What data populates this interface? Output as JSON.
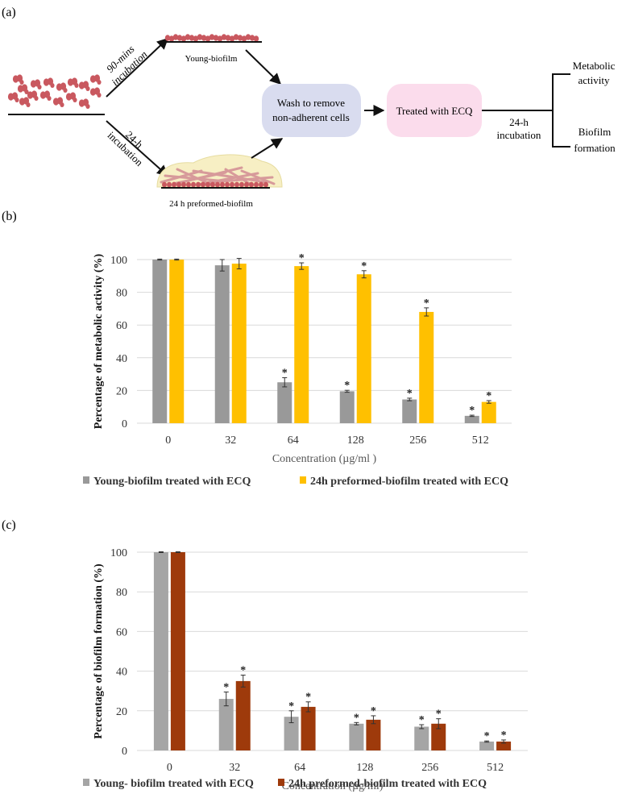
{
  "panel_a": {
    "label": "(a)",
    "arrow_top_label_1": "90-mins",
    "arrow_top_label_2": "incubation",
    "arrow_bottom_label_1": "24-h",
    "arrow_bottom_label_2": "incubation",
    "young_caption": "Young-biofilm",
    "preformed_caption": "24 h preformed-biofilm",
    "wash_box_1": "Wash to remove",
    "wash_box_2": "non-adherent cells",
    "treated_box": "Treated with ECQ",
    "incubation_1": "24-h",
    "incubation_2": "incubation",
    "outcome_1a": "Metabolic",
    "outcome_1b": "activity",
    "outcome_2a": "Biofilm",
    "outcome_2b": "formation",
    "colors": {
      "wash_box": "#d9dcef",
      "treated_box": "#fbdcec",
      "cells": "#c9585f",
      "matrix": "#f7efc4"
    }
  },
  "chart_data": [
    {
      "panel_label": "(b)",
      "type": "bar",
      "title": "",
      "xlabel": "Concentration (µg/ml )",
      "ylabel": "Percentage of metabolic activity (%)",
      "ylim": [
        0,
        100
      ],
      "yticks": [
        0,
        20,
        40,
        60,
        80,
        100
      ],
      "grid": true,
      "legend_position": "bottom",
      "categories": [
        "0",
        "32",
        "64",
        "128",
        "256",
        "512"
      ],
      "series": [
        {
          "name": "Young-biofilm treated with ECQ",
          "color": "#999999",
          "values": [
            100,
            96.5,
            25,
            19.5,
            14.5,
            4.5
          ],
          "errors": [
            0.3,
            3.5,
            2.8,
            0.6,
            0.8,
            0.4
          ],
          "significant": [
            false,
            false,
            true,
            true,
            true,
            true
          ]
        },
        {
          "name": "24h preformed-biofilm treated with ECQ",
          "color": "#ffc000",
          "values": [
            100,
            97.5,
            96,
            91,
            68,
            13
          ],
          "errors": [
            0.3,
            3.2,
            2.0,
            2.2,
            2.5,
            0.8
          ],
          "significant": [
            false,
            false,
            true,
            true,
            true,
            true
          ]
        }
      ]
    },
    {
      "panel_label": "(c)",
      "type": "bar",
      "title": "",
      "xlabel": "Concentration (µg/ml)",
      "ylabel": "Percentage of biofilm  formation (%)",
      "ylim": [
        0,
        100
      ],
      "yticks": [
        0,
        20,
        40,
        60,
        80,
        100
      ],
      "grid": true,
      "legend_position": "bottom",
      "categories": [
        "0",
        "32",
        "64",
        "128",
        "256",
        "512"
      ],
      "series": [
        {
          "name": "Young- biofilm treated with ECQ",
          "color": "#a5a5a5",
          "values": [
            100,
            26,
            17,
            13.5,
            12,
            4.5
          ],
          "errors": [
            0.2,
            3.5,
            3.0,
            0.6,
            1.0,
            0.3
          ],
          "significant": [
            false,
            true,
            true,
            true,
            true,
            true
          ]
        },
        {
          "name": "24h preformed-biofilm treated with ECQ",
          "color": "#9e3a0b",
          "values": [
            100,
            35,
            22,
            15.5,
            13.5,
            4.5
          ],
          "errors": [
            0.2,
            3.0,
            2.5,
            2.0,
            2.5,
            0.8
          ],
          "significant": [
            false,
            true,
            true,
            true,
            true,
            true
          ]
        }
      ]
    }
  ],
  "significance_marker": "*"
}
